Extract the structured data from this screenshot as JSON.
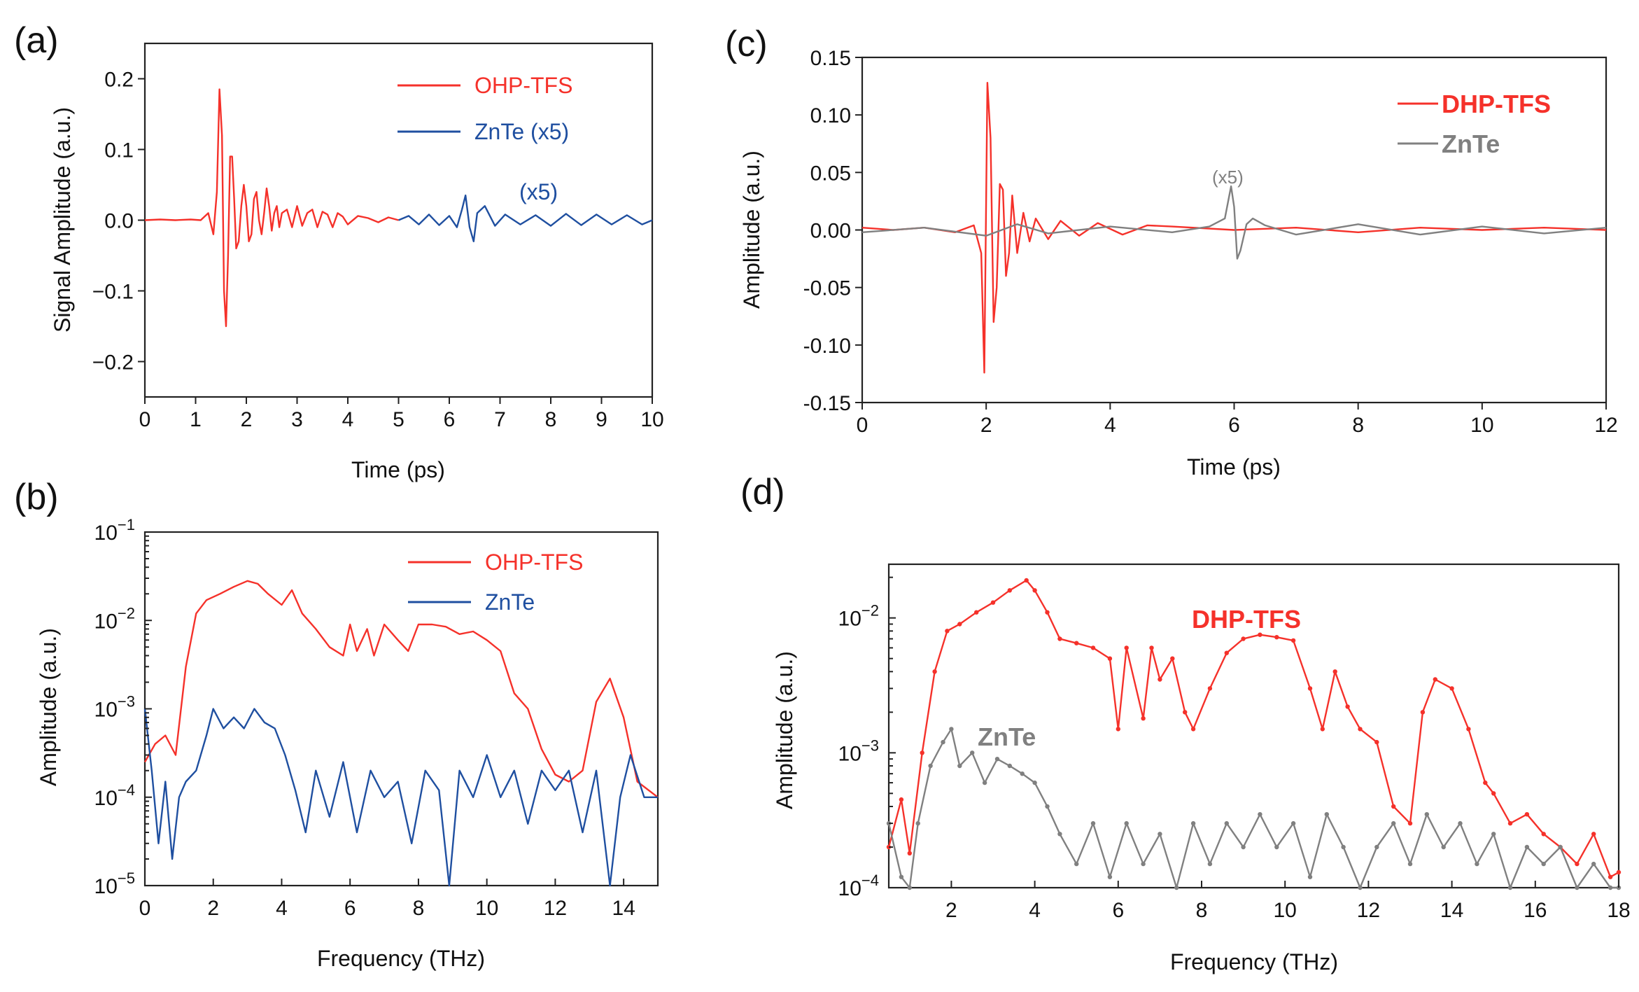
{
  "figure": {
    "colors": {
      "red": "#f5312a",
      "blue": "#1f4fa0",
      "gray": "#808080",
      "axis": "#222222"
    }
  },
  "chart_data": [
    {
      "id": "a",
      "panel_label": "(a)",
      "type": "line",
      "xlabel": "Time (ps)",
      "ylabel": "Signal Amplitude (a.u.)",
      "xlim": [
        0,
        10
      ],
      "ylim": [
        -0.25,
        0.25
      ],
      "xticks": [
        0,
        1,
        2,
        3,
        4,
        5,
        6,
        7,
        8,
        9,
        10
      ],
      "xtick_labels": [
        "0",
        "1",
        "2",
        "3",
        "4",
        "5",
        "6",
        "7",
        "8",
        "9",
        "10"
      ],
      "yticks": [
        -0.2,
        -0.1,
        0.0,
        0.1,
        0.2
      ],
      "ytick_labels": [
        "−0.2",
        "−0.1",
        "0.0",
        "0.1",
        "0.2"
      ],
      "legend": [
        "OHP-TFS",
        "ZnTe (x5)"
      ],
      "annotations": [
        "(x5)"
      ],
      "series": [
        {
          "name": "OHP-TFS",
          "color": "#f5312a",
          "x": [
            0.0,
            0.3,
            0.6,
            0.9,
            1.1,
            1.25,
            1.35,
            1.42,
            1.47,
            1.52,
            1.56,
            1.6,
            1.64,
            1.68,
            1.72,
            1.76,
            1.8,
            1.85,
            1.9,
            1.95,
            2.0,
            2.05,
            2.1,
            2.15,
            2.2,
            2.25,
            2.3,
            2.35,
            2.4,
            2.45,
            2.5,
            2.55,
            2.6,
            2.65,
            2.7,
            2.8,
            2.9,
            3.0,
            3.1,
            3.2,
            3.3,
            3.4,
            3.5,
            3.6,
            3.7,
            3.8,
            3.9,
            4.0,
            4.2,
            4.4,
            4.6,
            4.8,
            5.0
          ],
          "y": [
            0.0,
            0.001,
            0.0,
            0.001,
            0.0,
            0.01,
            -0.02,
            0.04,
            0.185,
            0.12,
            -0.1,
            -0.15,
            -0.05,
            0.09,
            0.09,
            0.03,
            -0.04,
            -0.03,
            0.02,
            0.05,
            0.02,
            -0.03,
            -0.02,
            0.03,
            0.04,
            0.0,
            -0.02,
            0.01,
            0.045,
            0.02,
            -0.015,
            0.01,
            0.02,
            -0.01,
            0.01,
            0.015,
            -0.01,
            0.02,
            -0.008,
            0.01,
            0.015,
            -0.01,
            0.012,
            0.008,
            -0.01,
            0.01,
            0.005,
            -0.006,
            0.006,
            0.003,
            -0.003,
            0.004,
            0.0
          ]
        },
        {
          "name": "ZnTe (x5)",
          "color": "#1f4fa0",
          "x": [
            5.0,
            5.2,
            5.4,
            5.6,
            5.8,
            6.0,
            6.15,
            6.25,
            6.32,
            6.4,
            6.48,
            6.55,
            6.7,
            6.9,
            7.1,
            7.4,
            7.7,
            8.0,
            8.3,
            8.6,
            8.9,
            9.2,
            9.5,
            9.8,
            10.0
          ],
          "y": [
            0.0,
            0.006,
            -0.006,
            0.008,
            -0.007,
            0.006,
            -0.01,
            0.015,
            0.035,
            -0.01,
            -0.03,
            0.01,
            0.02,
            -0.008,
            0.008,
            -0.006,
            0.007,
            -0.008,
            0.009,
            -0.007,
            0.008,
            -0.006,
            0.007,
            -0.006,
            0.0
          ]
        }
      ]
    },
    {
      "id": "b",
      "panel_label": "(b)",
      "type": "line",
      "yscale": "log",
      "xlabel": "Frequency (THz)",
      "ylabel": "Amplitude (a.u.)",
      "xlim": [
        0,
        15
      ],
      "ylim": [
        1e-05,
        0.1
      ],
      "xticks": [
        0,
        2,
        4,
        6,
        8,
        10,
        12,
        14
      ],
      "xtick_labels": [
        "0",
        "2",
        "4",
        "6",
        "8",
        "10",
        "12",
        "14"
      ],
      "ytick_exponents": [
        -5,
        -4,
        -3,
        -2,
        -1
      ],
      "ytick_base": "10",
      "legend": [
        "OHP-TFS",
        "ZnTe"
      ],
      "series": [
        {
          "name": "OHP-TFS",
          "color": "#f5312a",
          "x": [
            0.0,
            0.3,
            0.6,
            0.9,
            1.2,
            1.5,
            1.8,
            2.2,
            2.6,
            3.0,
            3.3,
            3.6,
            4.0,
            4.3,
            4.6,
            5.0,
            5.4,
            5.8,
            6.0,
            6.2,
            6.5,
            6.7,
            7.0,
            7.4,
            7.7,
            8.0,
            8.4,
            8.8,
            9.2,
            9.6,
            10.0,
            10.4,
            10.8,
            11.2,
            11.6,
            12.0,
            12.4,
            12.8,
            13.2,
            13.6,
            14.0,
            14.4,
            15.0
          ],
          "y": [
            0.00025,
            0.0004,
            0.0005,
            0.0003,
            0.003,
            0.012,
            0.017,
            0.02,
            0.024,
            0.028,
            0.026,
            0.02,
            0.015,
            0.022,
            0.012,
            0.008,
            0.005,
            0.004,
            0.009,
            0.0045,
            0.008,
            0.004,
            0.009,
            0.006,
            0.0045,
            0.009,
            0.009,
            0.0085,
            0.007,
            0.0075,
            0.006,
            0.0045,
            0.0015,
            0.001,
            0.00035,
            0.00018,
            0.00015,
            0.0002,
            0.0012,
            0.0022,
            0.0008,
            0.00015,
            0.0001
          ]
        },
        {
          "name": "ZnTe",
          "color": "#1f4fa0",
          "x": [
            0.0,
            0.2,
            0.4,
            0.6,
            0.8,
            1.0,
            1.2,
            1.5,
            1.8,
            2.0,
            2.3,
            2.6,
            2.9,
            3.2,
            3.5,
            3.8,
            4.1,
            4.4,
            4.7,
            5.0,
            5.4,
            5.8,
            6.2,
            6.6,
            7.0,
            7.4,
            7.8,
            8.2,
            8.6,
            8.9,
            9.2,
            9.6,
            10.0,
            10.4,
            10.8,
            11.2,
            11.6,
            12.0,
            12.4,
            12.8,
            13.2,
            13.6,
            13.9,
            14.2,
            14.6,
            15.0
          ],
          "y": [
            0.001,
            0.0002,
            3e-05,
            0.00015,
            2e-05,
            0.0001,
            0.00015,
            0.0002,
            0.0005,
            0.001,
            0.0006,
            0.0008,
            0.0006,
            0.001,
            0.0007,
            0.0006,
            0.0003,
            0.00012,
            4e-05,
            0.0002,
            6e-05,
            0.00025,
            4e-05,
            0.0002,
            0.0001,
            0.00015,
            3e-05,
            0.0002,
            0.00012,
            1e-05,
            0.0002,
            0.0001,
            0.0003,
            0.0001,
            0.0002,
            5e-05,
            0.0002,
            0.00012,
            0.0002,
            4e-05,
            0.0002,
            1e-05,
            0.0001,
            0.0003,
            0.0001,
            0.0001
          ]
        }
      ]
    },
    {
      "id": "c",
      "panel_label": "(c)",
      "type": "line",
      "xlabel": "Time (ps)",
      "ylabel": "Amplitude (a.u.)",
      "xlim": [
        0,
        12
      ],
      "ylim": [
        -0.15,
        0.15
      ],
      "xticks": [
        0,
        2,
        4,
        6,
        8,
        10,
        12
      ],
      "xtick_labels": [
        "0",
        "2",
        "4",
        "6",
        "8",
        "10",
        "12"
      ],
      "yticks": [
        -0.15,
        -0.1,
        -0.05,
        0.0,
        0.05,
        0.1,
        0.15
      ],
      "ytick_labels": [
        "-0.15",
        "-0.10",
        "-0.05",
        "0.00",
        "0.05",
        "0.10",
        "0.15"
      ],
      "legend": [
        "DHP-TFS",
        "ZnTe"
      ],
      "annotations": [
        "(x5)"
      ],
      "series": [
        {
          "name": "DHP-TFS",
          "color": "#f5312a",
          "x": [
            0.0,
            0.5,
            1.0,
            1.5,
            1.8,
            1.92,
            1.97,
            2.02,
            2.07,
            2.12,
            2.17,
            2.22,
            2.27,
            2.32,
            2.37,
            2.42,
            2.5,
            2.6,
            2.7,
            2.8,
            3.0,
            3.2,
            3.5,
            3.8,
            4.2,
            4.6,
            5.0,
            6.0,
            7.0,
            8.0,
            9.0,
            10.0,
            11.0,
            12.0
          ],
          "y": [
            0.002,
            0.0,
            0.002,
            -0.002,
            0.004,
            -0.02,
            -0.124,
            0.128,
            0.08,
            -0.08,
            -0.05,
            0.04,
            0.035,
            -0.04,
            -0.02,
            0.03,
            -0.02,
            0.015,
            -0.01,
            0.01,
            -0.008,
            0.008,
            -0.005,
            0.006,
            -0.004,
            0.004,
            0.003,
            0.0,
            0.002,
            -0.002,
            0.002,
            0.0,
            0.002,
            0.0
          ]
        },
        {
          "name": "ZnTe",
          "color": "#808080",
          "x": [
            0.0,
            1.0,
            2.0,
            2.5,
            3.0,
            4.0,
            5.0,
            5.6,
            5.85,
            5.95,
            6.0,
            6.05,
            6.1,
            6.2,
            6.3,
            6.5,
            7.0,
            8.0,
            9.0,
            10.0,
            11.0,
            12.0
          ],
          "y": [
            -0.002,
            0.002,
            -0.005,
            0.005,
            -0.003,
            0.003,
            -0.002,
            0.003,
            0.01,
            0.038,
            0.02,
            -0.025,
            -0.018,
            0.005,
            0.01,
            0.004,
            -0.004,
            0.005,
            -0.004,
            0.003,
            -0.003,
            0.002
          ]
        }
      ]
    },
    {
      "id": "d",
      "panel_label": "(d)",
      "type": "line",
      "yscale": "log",
      "xlabel": "Frequency (THz)",
      "ylabel": "Amplitude (a.u.)",
      "xlim": [
        0.5,
        18
      ],
      "ylim": [
        0.0001,
        0.025
      ],
      "xticks": [
        2,
        4,
        6,
        8,
        10,
        12,
        14,
        16,
        18
      ],
      "xtick_labels": [
        "2",
        "4",
        "6",
        "8",
        "10",
        "12",
        "14",
        "16",
        "18"
      ],
      "ytick_exponents": [
        -4,
        -3,
        -2
      ],
      "ytick_base": "10",
      "legend": [
        "DHP-TFS",
        "ZnTe"
      ],
      "series": [
        {
          "name": "DHP-TFS",
          "color": "#f5312a",
          "x": [
            0.5,
            0.8,
            1.0,
            1.3,
            1.6,
            1.9,
            2.2,
            2.6,
            3.0,
            3.4,
            3.8,
            4.0,
            4.3,
            4.6,
            5.0,
            5.4,
            5.8,
            6.0,
            6.2,
            6.6,
            6.8,
            7.0,
            7.3,
            7.6,
            7.8,
            8.2,
            8.6,
            9.0,
            9.4,
            9.8,
            10.2,
            10.6,
            10.9,
            11.2,
            11.5,
            11.8,
            12.2,
            12.6,
            13.0,
            13.3,
            13.6,
            14.0,
            14.4,
            14.8,
            15.0,
            15.4,
            15.8,
            16.2,
            16.6,
            17.0,
            17.4,
            17.8,
            18.0
          ],
          "y": [
            0.0002,
            0.00045,
            0.00018,
            0.001,
            0.004,
            0.008,
            0.009,
            0.011,
            0.013,
            0.016,
            0.019,
            0.016,
            0.011,
            0.007,
            0.0065,
            0.006,
            0.005,
            0.0015,
            0.006,
            0.0018,
            0.006,
            0.0035,
            0.005,
            0.002,
            0.0015,
            0.003,
            0.0055,
            0.007,
            0.0075,
            0.0072,
            0.0068,
            0.003,
            0.0015,
            0.004,
            0.0022,
            0.0015,
            0.0012,
            0.0004,
            0.0003,
            0.002,
            0.0035,
            0.003,
            0.0015,
            0.0006,
            0.0005,
            0.0003,
            0.00035,
            0.00025,
            0.0002,
            0.00015,
            0.00025,
            0.00012,
            0.00013
          ]
        },
        {
          "name": "ZnTe",
          "color": "#808080",
          "x": [
            0.5,
            0.8,
            1.0,
            1.2,
            1.5,
            1.8,
            2.0,
            2.2,
            2.5,
            2.8,
            3.1,
            3.4,
            3.7,
            4.0,
            4.3,
            4.6,
            5.0,
            5.4,
            5.8,
            6.2,
            6.6,
            7.0,
            7.4,
            7.8,
            8.2,
            8.6,
            9.0,
            9.4,
            9.8,
            10.2,
            10.6,
            11.0,
            11.4,
            11.8,
            12.2,
            12.6,
            13.0,
            13.4,
            13.8,
            14.2,
            14.6,
            15.0,
            15.4,
            15.8,
            16.2,
            16.6,
            17.0,
            17.4,
            17.8,
            18.0
          ],
          "y": [
            0.0003,
            0.00012,
            0.0001,
            0.0003,
            0.0008,
            0.0012,
            0.0015,
            0.0008,
            0.001,
            0.0006,
            0.0009,
            0.0008,
            0.0007,
            0.0006,
            0.0004,
            0.00025,
            0.00015,
            0.0003,
            0.00012,
            0.0003,
            0.00015,
            0.00025,
            0.0001,
            0.0003,
            0.00015,
            0.0003,
            0.0002,
            0.00035,
            0.0002,
            0.0003,
            0.00012,
            0.00035,
            0.0002,
            0.0001,
            0.0002,
            0.0003,
            0.00015,
            0.00035,
            0.0002,
            0.0003,
            0.00015,
            0.00025,
            0.0001,
            0.0002,
            0.00015,
            0.0002,
            0.0001,
            0.00015,
            0.0001,
            0.0001
          ]
        }
      ]
    }
  ]
}
